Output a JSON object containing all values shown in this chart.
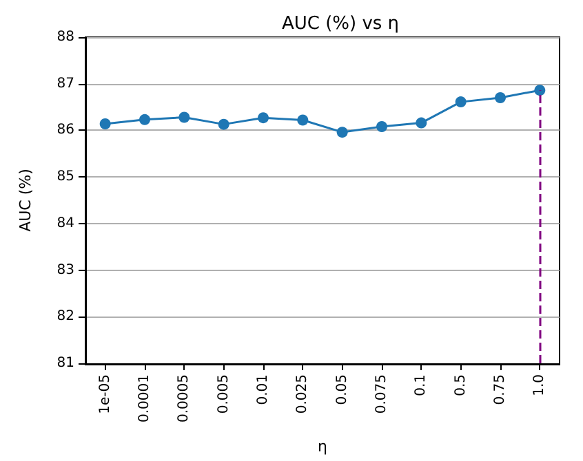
{
  "chart_data": {
    "type": "line",
    "title": "AUC (%) vs η",
    "xlabel": "η",
    "ylabel": "AUC (%)",
    "categories": [
      "1e-05",
      "0.0001",
      "0.0005",
      "0.005",
      "0.01",
      "0.025",
      "0.05",
      "0.075",
      "0.1",
      "0.5",
      "0.75",
      "1.0"
    ],
    "series": [
      {
        "color": "#1f77b4",
        "values": [
          86.14,
          86.23,
          86.28,
          86.13,
          86.27,
          86.22,
          85.96,
          86.08,
          86.16,
          86.61,
          86.7,
          86.86
        ]
      }
    ],
    "ylim": [
      81,
      88
    ],
    "yticks": [
      81,
      82,
      83,
      84,
      85,
      86,
      87,
      88
    ],
    "grid": "y",
    "marker": "circle",
    "line_style": "solid",
    "ref_lines": [
      {
        "axis": "x",
        "value": "1.0",
        "color": "#800080",
        "line_style": "dashed"
      }
    ]
  }
}
